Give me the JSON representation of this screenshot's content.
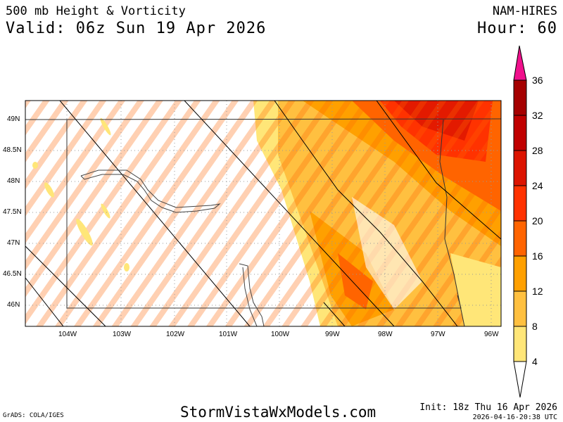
{
  "header": {
    "title": "500 mb Height & Vorticity",
    "valid": "Valid: 06z Sun 19 Apr 2026",
    "model": "NAM-HIRES",
    "hour": "Hour: 60"
  },
  "footer": {
    "site": "StormVistaWxModels.com",
    "grads": "GrADS: COLA/IGES",
    "init": "Init: 18z Thu 16 Apr 2026",
    "stamp": "2026-04-16-20:38 UTC"
  },
  "map": {
    "lon_labels": [
      "104W",
      "103W",
      "102W",
      "101W",
      "100W",
      "99W",
      "98W",
      "97W",
      "96W"
    ],
    "lat_labels": [
      "49N",
      "48.5N",
      "48N",
      "47.5N",
      "47N",
      "46.5N",
      "46N"
    ]
  },
  "colorbar": {
    "labels": [
      "36",
      "32",
      "28",
      "24",
      "20",
      "16",
      "12",
      "8",
      "4"
    ],
    "colors": [
      "#a50000",
      "#c00000",
      "#dc1400",
      "#ff3200",
      "#ff6400",
      "#ffa000",
      "#ffc040",
      "#ffe678"
    ],
    "over_color": "#f0108c"
  }
}
